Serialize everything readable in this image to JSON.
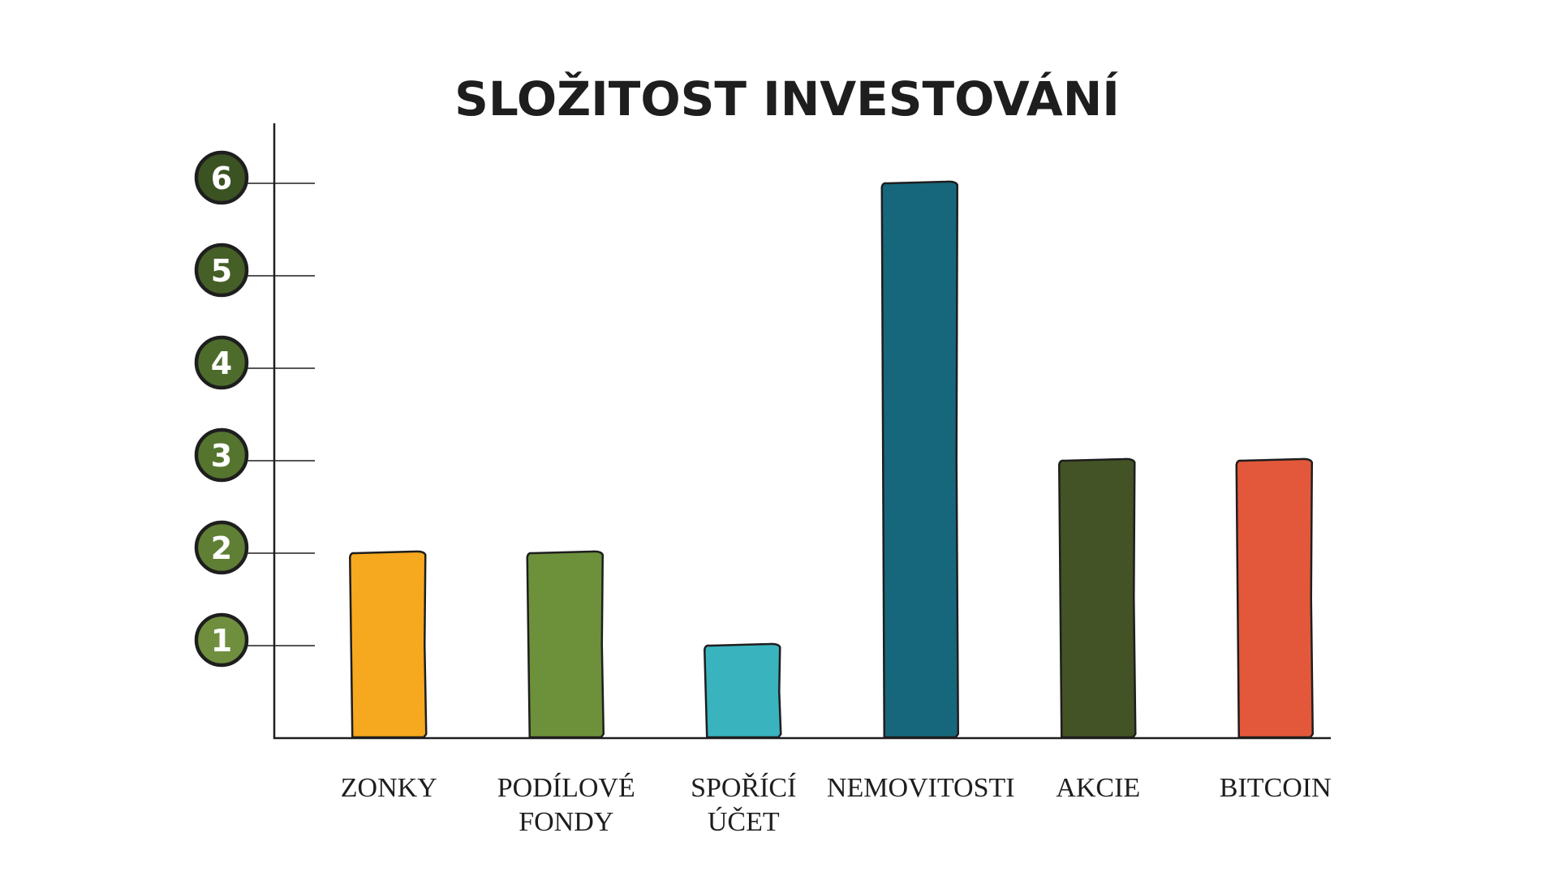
{
  "chart_data": {
    "type": "bar",
    "title": "SLOŽITOST INVESTOVÁNÍ",
    "xlabel": "",
    "ylabel": "",
    "ylim": [
      0,
      6.6
    ],
    "yticks": [
      1,
      2,
      3,
      4,
      5,
      6
    ],
    "ytick_colors": [
      "#6f8f3e",
      "#5f7f35",
      "#55752f",
      "#4d6c2b",
      "#455f27",
      "#3b5222"
    ],
    "categories": [
      [
        "ZONKY"
      ],
      [
        "PODÍLOVÉ",
        "FONDY"
      ],
      [
        "SPOŘÍCÍ",
        "ÚČET"
      ],
      [
        "NEMOVITOSTI"
      ],
      [
        "AKCIE"
      ],
      [
        "BITCOIN"
      ]
    ],
    "values": [
      2,
      2,
      1,
      6,
      3,
      3
    ],
    "colors": [
      "#f6a81e",
      "#6d903b",
      "#39b3bd",
      "#17677c",
      "#435325",
      "#e3583a"
    ],
    "grid": false,
    "legend": "none"
  }
}
